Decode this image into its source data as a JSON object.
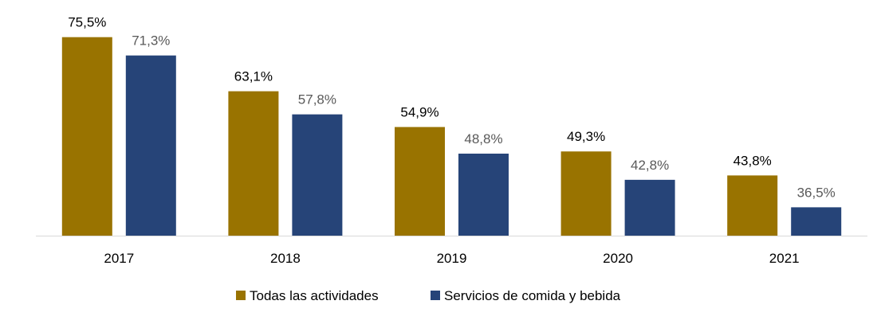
{
  "chart_data": {
    "type": "bar",
    "title": "",
    "xlabel": "",
    "ylabel": "",
    "categories": [
      "2017",
      "2018",
      "2019",
      "2020",
      "2021"
    ],
    "ylim": [
      30,
      80
    ],
    "grid": false,
    "legend_placement": "bottom",
    "series": [
      {
        "name": "Todas las actividades",
        "color": "#997300",
        "label_color": "#000000",
        "values": [
          75.5,
          63.1,
          54.9,
          49.3,
          43.8
        ],
        "labels": [
          "75,5%",
          "63,1%",
          "54,9%",
          "49,3%",
          "43,8%"
        ]
      },
      {
        "name": "Servicios de comida y bebida",
        "color": "#264478",
        "label_color": "#595959",
        "values": [
          71.3,
          57.8,
          48.8,
          42.8,
          36.5
        ],
        "labels": [
          "71,3%",
          "57,8%",
          "48,8%",
          "42,8%",
          "36,5%"
        ]
      }
    ]
  }
}
